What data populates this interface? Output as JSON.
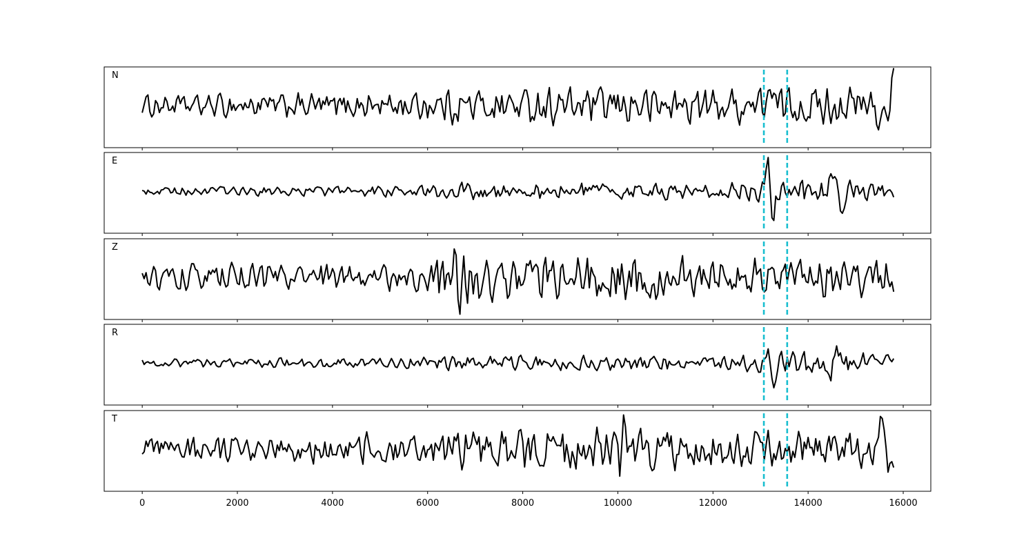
{
  "chart_data": {
    "type": "line",
    "title": "",
    "xlabel": "",
    "ylabel": "",
    "xlim": [
      -800,
      16580
    ],
    "x_ticks": [
      0,
      2000,
      4000,
      6000,
      8000,
      10000,
      12000,
      14000,
      16000
    ],
    "x_tick_labels": [
      "0",
      "2000",
      "4000",
      "6000",
      "8000",
      "10000",
      "12000",
      "14000",
      "16000"
    ],
    "x_range": [
      0,
      15800
    ],
    "sample_step": 40,
    "pick_lines": [
      13070,
      13560
    ],
    "pick_color": "#17becf",
    "trace_color": "#000000",
    "grid": false,
    "legend": "none",
    "panels": [
      {
        "label": "N",
        "envelope": [
          [
            0,
            0.25
          ],
          [
            6000,
            0.35
          ],
          [
            6500,
            0.45
          ],
          [
            10000,
            0.45
          ],
          [
            13000,
            0.45
          ],
          [
            13200,
            0.5
          ],
          [
            15300,
            0.45
          ],
          [
            15500,
            0.7
          ],
          [
            15800,
            0.8
          ]
        ],
        "events": [
          {
            "x": 13150,
            "width": 90,
            "amp": 0.35
          },
          {
            "x": 15540,
            "width": 80,
            "amp": -0.55
          },
          {
            "x": 15720,
            "width": 90,
            "amp": 0.55
          }
        ]
      },
      {
        "label": "E",
        "envelope": [
          [
            0,
            0.1
          ],
          [
            6000,
            0.14
          ],
          [
            7000,
            0.22
          ],
          [
            12000,
            0.2
          ],
          [
            13000,
            0.25
          ],
          [
            13600,
            0.3
          ],
          [
            15800,
            0.25
          ]
        ],
        "events": [
          {
            "x": 13160,
            "width": 60,
            "amp": 0.82
          },
          {
            "x": 13260,
            "width": 70,
            "amp": -0.7
          },
          {
            "x": 14500,
            "width": 60,
            "amp": 0.55
          },
          {
            "x": 14720,
            "width": 80,
            "amp": -0.45
          }
        ]
      },
      {
        "label": "Z",
        "envelope": [
          [
            0,
            0.3
          ],
          [
            6000,
            0.35
          ],
          [
            6300,
            0.75
          ],
          [
            8000,
            0.6
          ],
          [
            11000,
            0.55
          ],
          [
            13000,
            0.45
          ],
          [
            15800,
            0.5
          ]
        ],
        "events": [
          {
            "x": 6530,
            "width": 50,
            "amp": 0.7
          },
          {
            "x": 6640,
            "width": 50,
            "amp": -0.7
          },
          {
            "x": 10850,
            "width": 50,
            "amp": -0.6
          }
        ]
      },
      {
        "label": "R",
        "envelope": [
          [
            0,
            0.1
          ],
          [
            6000,
            0.14
          ],
          [
            7000,
            0.2
          ],
          [
            12000,
            0.18
          ],
          [
            13000,
            0.22
          ],
          [
            13600,
            0.3
          ],
          [
            15800,
            0.25
          ]
        ],
        "events": [
          {
            "x": 13170,
            "width": 60,
            "amp": 0.75
          },
          {
            "x": 13230,
            "width": 70,
            "amp": -0.85
          },
          {
            "x": 14450,
            "width": 70,
            "amp": -0.5
          },
          {
            "x": 14580,
            "width": 70,
            "amp": 0.45
          }
        ]
      },
      {
        "label": "T",
        "envelope": [
          [
            0,
            0.3
          ],
          [
            6000,
            0.38
          ],
          [
            6500,
            0.5
          ],
          [
            10000,
            0.55
          ],
          [
            13000,
            0.45
          ],
          [
            15300,
            0.5
          ],
          [
            15500,
            0.6
          ],
          [
            15800,
            0.6
          ]
        ],
        "events": [
          {
            "x": 10120,
            "width": 50,
            "amp": 0.6
          },
          {
            "x": 10060,
            "width": 50,
            "amp": -0.55
          },
          {
            "x": 15560,
            "width": 80,
            "amp": 0.85
          },
          {
            "x": 15680,
            "width": 80,
            "amp": -0.65
          }
        ]
      }
    ]
  }
}
